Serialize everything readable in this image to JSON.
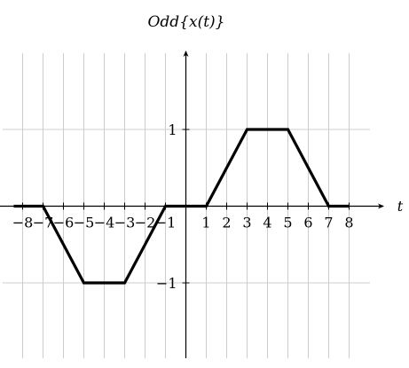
{
  "chart_data": {
    "type": "line",
    "title": "Odd{x(t)}",
    "xlabel": "t",
    "ylabel": "",
    "xlim": [
      -8.4,
      8.4
    ],
    "ylim": [
      -2,
      2
    ],
    "grid": true,
    "x_ticks": [
      -8,
      -7,
      -6,
      -5,
      -4,
      -3,
      -2,
      -1,
      1,
      2,
      3,
      4,
      5,
      6,
      7,
      8
    ],
    "x_tick_labels": [
      "−8",
      "−7",
      "−6",
      "−5",
      "−4",
      "−3",
      "−2",
      "−1",
      "1",
      "2",
      "3",
      "4",
      "5",
      "6",
      "7",
      "8"
    ],
    "y_ticks": [
      1,
      -1
    ],
    "y_tick_labels": [
      "1",
      "−1"
    ],
    "series": [
      {
        "x": [
          -8,
          -7,
          -5,
          -3,
          -1,
          1,
          3,
          5,
          7,
          8
        ],
        "y": [
          0,
          0,
          -1,
          -1,
          0,
          0,
          1,
          1,
          0,
          0
        ]
      }
    ],
    "colors": {
      "series": "#000000",
      "grid": "#cccccc",
      "axis": "#000000"
    }
  }
}
